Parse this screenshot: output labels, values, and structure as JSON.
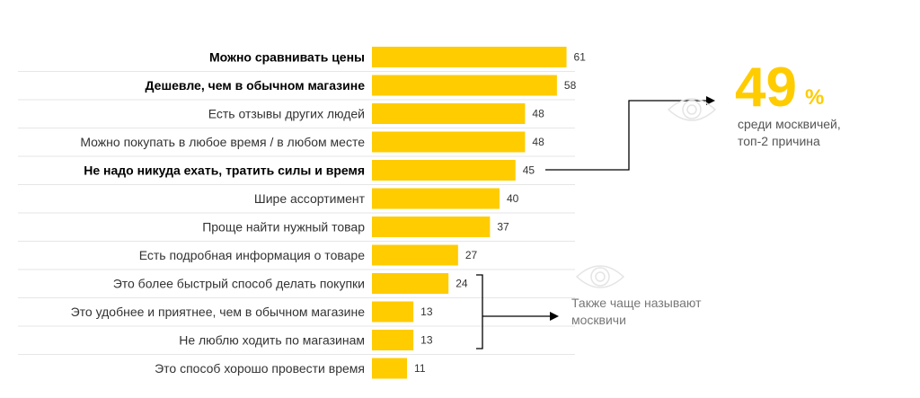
{
  "chart_data": {
    "type": "bar",
    "orientation": "horizontal",
    "categories": [
      "Можно сравнивать цены",
      "Дешевле, чем в обычном магазине",
      "Есть отзывы других людей",
      "Можно покупать в любое время / в любом месте",
      "Не надо никуда ехать, тратить силы и время",
      "Шире ассортимент",
      "Проще найти нужный товар",
      "Есть подробная информация о товаре",
      "Это более быстрый способ делать покупки",
      "Это удобнее и приятнее, чем в обычном магазине",
      "Не люблю ходить по магазинам",
      "Это способ хорошо провести время"
    ],
    "values": [
      61,
      58,
      48,
      48,
      45,
      40,
      37,
      27,
      24,
      13,
      13,
      11
    ],
    "highlighted": [
      true,
      true,
      false,
      false,
      true,
      false,
      false,
      false,
      false,
      false,
      false,
      false
    ],
    "bar_color": "#ffcc00",
    "grid": false
  },
  "callouts": {
    "top": {
      "number": "49",
      "percent": "%",
      "line1": "среди москвичей,",
      "line2": "топ-2 причина",
      "icon": "eye-icon"
    },
    "bottom": {
      "line1": "Также чаще называют",
      "line2": "москвичи",
      "icon": "eye-icon"
    }
  },
  "colors": {
    "accent": "#ffcc00",
    "text": "#333333",
    "separator": "#e6e6e6"
  }
}
